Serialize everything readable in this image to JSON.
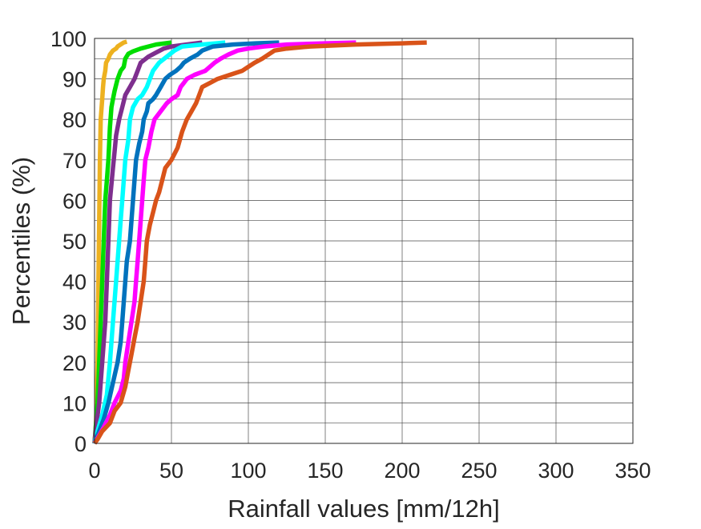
{
  "chart_data": {
    "type": "line",
    "title": "",
    "xlabel": "Rainfall values [mm/12h]",
    "ylabel": "Percentiles (%)",
    "xlim": [
      0,
      350
    ],
    "ylim": [
      0,
      100
    ],
    "xticks": [
      0,
      50,
      100,
      150,
      200,
      250,
      300,
      350
    ],
    "yticks": [
      0,
      10,
      20,
      30,
      40,
      50,
      60,
      70,
      80,
      90,
      100
    ],
    "grid": true,
    "minor_y_grid": true,
    "legend": "none",
    "series": [
      {
        "color": "#EDB120",
        "points": [
          [
            0,
            0
          ],
          [
            1,
            5
          ],
          [
            2,
            20
          ],
          [
            2.5,
            40
          ],
          [
            3,
            55
          ],
          [
            3.5,
            70
          ],
          [
            4,
            80
          ],
          [
            5,
            85
          ],
          [
            5.5,
            88
          ],
          [
            6,
            90
          ],
          [
            7,
            92
          ],
          [
            7.5,
            94
          ],
          [
            9,
            95
          ],
          [
            10,
            96
          ],
          [
            12,
            97
          ],
          [
            14,
            97.5
          ],
          [
            15,
            98
          ],
          [
            17,
            98.5
          ],
          [
            19,
            99
          ],
          [
            21,
            99.2
          ]
        ]
      },
      {
        "color": "#00DD00",
        "points": [
          [
            0,
            0
          ],
          [
            1,
            5
          ],
          [
            2,
            10
          ],
          [
            3,
            20
          ],
          [
            4,
            30
          ],
          [
            5,
            40
          ],
          [
            6,
            50
          ],
          [
            7,
            60
          ],
          [
            8,
            65
          ],
          [
            9,
            70
          ],
          [
            10,
            78
          ],
          [
            11,
            83
          ],
          [
            12,
            85
          ],
          [
            13,
            87
          ],
          [
            15,
            90
          ],
          [
            17,
            92
          ],
          [
            19,
            93
          ],
          [
            20,
            95
          ],
          [
            22,
            96.2
          ],
          [
            25,
            96.8
          ],
          [
            30,
            97.5
          ],
          [
            35,
            98
          ],
          [
            40,
            98.5
          ],
          [
            50,
            99
          ]
        ]
      },
      {
        "color": "#7E2F8E",
        "points": [
          [
            0,
            0
          ],
          [
            1,
            4
          ],
          [
            3,
            10
          ],
          [
            5,
            20
          ],
          [
            7,
            30
          ],
          [
            8,
            40
          ],
          [
            9,
            50
          ],
          [
            10,
            60
          ],
          [
            11,
            64
          ],
          [
            12,
            68
          ],
          [
            13,
            72
          ],
          [
            14,
            76
          ],
          [
            16,
            80
          ],
          [
            18,
            83
          ],
          [
            20,
            86
          ],
          [
            23,
            88
          ],
          [
            26,
            90
          ],
          [
            28,
            92
          ],
          [
            30,
            94
          ],
          [
            35,
            95.5
          ],
          [
            40,
            96.5
          ],
          [
            45,
            97.5
          ],
          [
            50,
            98
          ],
          [
            60,
            98.5
          ],
          [
            70,
            99
          ]
        ]
      },
      {
        "color": "#00FFFF",
        "points": [
          [
            0,
            0
          ],
          [
            2,
            3
          ],
          [
            5,
            7
          ],
          [
            8,
            12
          ],
          [
            10,
            20
          ],
          [
            12,
            30
          ],
          [
            14,
            40
          ],
          [
            16,
            50
          ],
          [
            17,
            55
          ],
          [
            18,
            60
          ],
          [
            19,
            65
          ],
          [
            20,
            70
          ],
          [
            22,
            75
          ],
          [
            23,
            80
          ],
          [
            25,
            83
          ],
          [
            28,
            85
          ],
          [
            31,
            86
          ],
          [
            34,
            88
          ],
          [
            36,
            90
          ],
          [
            38,
            92
          ],
          [
            42,
            94
          ],
          [
            47,
            95.5
          ],
          [
            52,
            97
          ],
          [
            57,
            98
          ],
          [
            70,
            98.5
          ],
          [
            85,
            99
          ]
        ]
      },
      {
        "color": "#0072BD",
        "points": [
          [
            0,
            0
          ],
          [
            3,
            3
          ],
          [
            6,
            6
          ],
          [
            9,
            10
          ],
          [
            12,
            15
          ],
          [
            15,
            20
          ],
          [
            17,
            25
          ],
          [
            18,
            30
          ],
          [
            19,
            35
          ],
          [
            20,
            40
          ],
          [
            21,
            45
          ],
          [
            23,
            50
          ],
          [
            24,
            55
          ],
          [
            25,
            60
          ],
          [
            26,
            65
          ],
          [
            27,
            70
          ],
          [
            29,
            74
          ],
          [
            31,
            77
          ],
          [
            32,
            80
          ],
          [
            34,
            82
          ],
          [
            35,
            84
          ],
          [
            38,
            85
          ],
          [
            40,
            86
          ],
          [
            43,
            88
          ],
          [
            46,
            90
          ],
          [
            49,
            91
          ],
          [
            53,
            92
          ],
          [
            56,
            93
          ],
          [
            58,
            94
          ],
          [
            62,
            95
          ],
          [
            67,
            96
          ],
          [
            70,
            97
          ],
          [
            77,
            98
          ],
          [
            90,
            98.5
          ],
          [
            105,
            98.8
          ],
          [
            120,
            99
          ]
        ]
      },
      {
        "color": "#FF00FF",
        "points": [
          [
            0,
            0
          ],
          [
            3,
            2
          ],
          [
            6,
            4
          ],
          [
            10,
            7
          ],
          [
            13,
            10
          ],
          [
            17,
            13
          ],
          [
            19,
            16
          ],
          [
            20,
            20
          ],
          [
            22,
            25
          ],
          [
            24,
            30
          ],
          [
            26,
            35
          ],
          [
            27,
            40
          ],
          [
            28,
            45
          ],
          [
            29,
            50
          ],
          [
            30,
            55
          ],
          [
            31,
            60
          ],
          [
            32,
            65
          ],
          [
            33,
            70
          ],
          [
            35,
            73
          ],
          [
            37,
            77
          ],
          [
            39,
            80
          ],
          [
            43,
            82
          ],
          [
            47,
            84
          ],
          [
            50,
            85
          ],
          [
            54,
            86
          ],
          [
            56,
            88
          ],
          [
            58,
            89
          ],
          [
            60,
            90
          ],
          [
            65,
            91
          ],
          [
            72,
            92
          ],
          [
            75,
            93
          ],
          [
            78,
            94
          ],
          [
            82,
            95
          ],
          [
            87,
            96
          ],
          [
            93,
            97
          ],
          [
            100,
            97.5
          ],
          [
            110,
            98
          ],
          [
            125,
            98.5
          ],
          [
            150,
            98.8
          ],
          [
            170,
            99
          ]
        ]
      },
      {
        "color": "#D95319",
        "points": [
          [
            0,
            0
          ],
          [
            2,
            1
          ],
          [
            5,
            3
          ],
          [
            10,
            5
          ],
          [
            13,
            8
          ],
          [
            17,
            10
          ],
          [
            20,
            14
          ],
          [
            22,
            18
          ],
          [
            24,
            22
          ],
          [
            26,
            26
          ],
          [
            28,
            30
          ],
          [
            30,
            35
          ],
          [
            32,
            40
          ],
          [
            33,
            45
          ],
          [
            34,
            50
          ],
          [
            36,
            54
          ],
          [
            38,
            57
          ],
          [
            40,
            60
          ],
          [
            42,
            62
          ],
          [
            44,
            65
          ],
          [
            46,
            68
          ],
          [
            50,
            70
          ],
          [
            54,
            73
          ],
          [
            57,
            77
          ],
          [
            60,
            80
          ],
          [
            63,
            82
          ],
          [
            66,
            84
          ],
          [
            68,
            86
          ],
          [
            70,
            88
          ],
          [
            75,
            89
          ],
          [
            80,
            90
          ],
          [
            88,
            91
          ],
          [
            96,
            92
          ],
          [
            100,
            93
          ],
          [
            104,
            94
          ],
          [
            109,
            95
          ],
          [
            113,
            96
          ],
          [
            117,
            97
          ],
          [
            125,
            97.5
          ],
          [
            140,
            98
          ],
          [
            170,
            98.5
          ],
          [
            200,
            98.8
          ],
          [
            216,
            99
          ]
        ]
      }
    ]
  }
}
